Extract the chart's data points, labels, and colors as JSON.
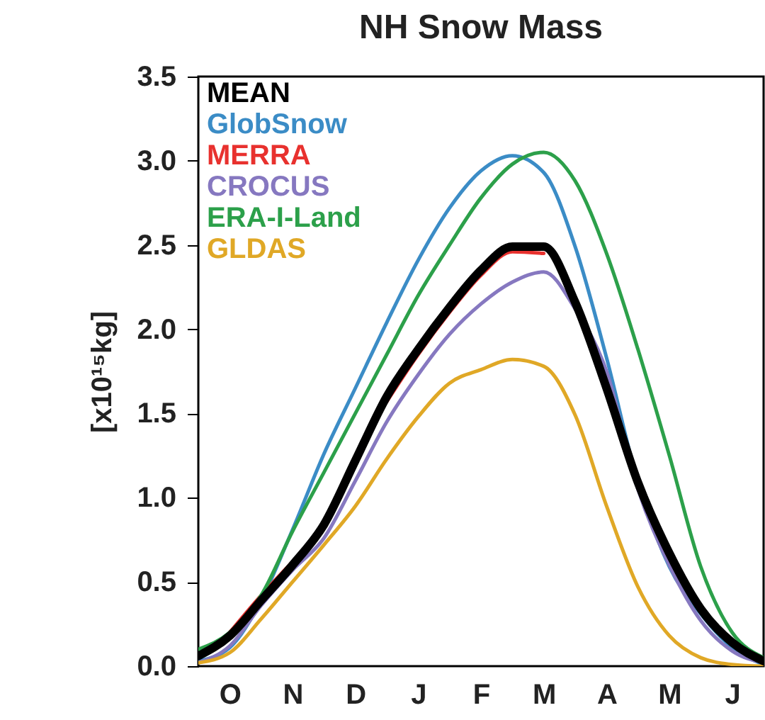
{
  "chart_data": {
    "type": "line",
    "title": "NH Snow Mass",
    "ylabel": "[x10¹⁵kg]",
    "categories": [
      null,
      "O",
      null,
      "N",
      null,
      "D",
      null,
      "J",
      null,
      "F",
      null,
      "M",
      null,
      "A",
      null,
      "M",
      null,
      "J",
      null
    ],
    "ylim": [
      0,
      3.5
    ],
    "yticks": [
      {
        "value": 0,
        "label": "0.0"
      },
      {
        "value": 0.5,
        "label": "0.5"
      },
      {
        "value": 1,
        "label": "1.0"
      },
      {
        "value": 1.5,
        "label": "1.5"
      },
      {
        "value": 2,
        "label": "2.0"
      },
      {
        "value": 2.5,
        "label": "2.5"
      },
      {
        "value": 3,
        "label": "3.0"
      },
      {
        "value": 3.5,
        "label": "3.5"
      }
    ],
    "legend": "top left",
    "series": [
      {
        "name": "MEAN",
        "color": "#000000",
        "values": [
          0.06,
          0.18,
          0.39,
          0.6,
          0.84,
          1.22,
          1.6,
          1.88,
          2.13,
          2.35,
          2.49,
          2.49,
          2.16,
          1.65,
          1.09,
          0.67,
          0.34,
          0.14,
          0.03
        ]
      },
      {
        "name": "GlobSnow",
        "color": "#3b8cc6",
        "values": [
          0.03,
          0.11,
          0.39,
          0.81,
          1.26,
          1.65,
          2.04,
          2.41,
          2.72,
          2.94,
          3.03,
          2.93,
          2.49,
          1.83,
          1.09,
          0.59,
          0.31,
          0.11,
          0.01
        ]
      },
      {
        "name": "MERRA",
        "color": "#e8312e",
        "values": [
          null,
          0.2,
          0.42,
          0.62,
          null,
          null,
          1.57,
          1.85,
          2.1,
          2.32,
          2.46,
          2.45,
          null,
          null,
          null,
          null,
          null,
          null,
          null
        ]
      },
      {
        "name": "CROCUS",
        "color": "#8678c0",
        "values": [
          0.02,
          0.12,
          0.36,
          0.57,
          0.76,
          1.1,
          1.45,
          1.73,
          1.97,
          2.15,
          2.28,
          2.34,
          2.12,
          1.75,
          1.05,
          0.6,
          0.27,
          0.09,
          0.02
        ]
      },
      {
        "name": "ERA-I-Land",
        "color": "#2ca04a",
        "values": [
          0.1,
          0.2,
          0.42,
          0.8,
          1.15,
          1.5,
          1.85,
          2.2,
          2.5,
          2.78,
          2.98,
          3.05,
          2.88,
          2.45,
          1.88,
          1.25,
          0.59,
          0.2,
          0.05
        ]
      },
      {
        "name": "GLDAS",
        "color": "#e0a826",
        "values": [
          0.02,
          0.08,
          0.28,
          0.5,
          0.72,
          0.95,
          1.23,
          1.48,
          1.68,
          1.76,
          1.82,
          1.78,
          1.49,
          0.95,
          0.47,
          0.18,
          0.05,
          0.01,
          0.0
        ]
      }
    ]
  }
}
